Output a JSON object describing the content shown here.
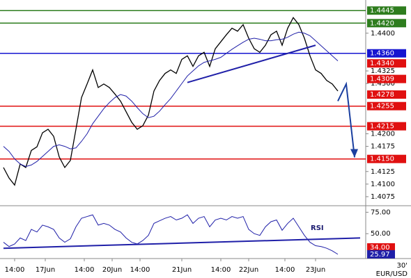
{
  "chart_data": {
    "type": "line",
    "symbol": "EUR/USD",
    "timeframe": "30'",
    "categories": [
      0,
      1,
      2,
      3,
      4,
      5,
      6,
      7,
      8,
      9,
      10,
      11,
      12,
      13,
      14,
      15,
      16,
      17,
      18,
      19,
      20,
      21,
      22,
      23,
      24,
      25,
      26,
      27,
      28,
      29,
      30,
      31,
      32,
      33,
      34,
      35,
      36,
      37,
      38,
      39,
      40,
      41,
      42,
      43,
      44,
      45,
      46,
      47,
      48,
      49,
      50,
      51,
      52,
      53,
      54,
      55,
      56,
      57,
      58,
      59,
      60
    ],
    "series": [
      {
        "color": "#000000",
        "values": [
          1.4133,
          1.4112,
          1.4098,
          1.414,
          1.4133,
          1.4167,
          1.4174,
          1.4202,
          1.4209,
          1.4195,
          1.4154,
          1.4133,
          1.4147,
          1.4209,
          1.4272,
          1.4299,
          1.4327,
          1.4292,
          1.4299,
          1.4292,
          1.4279,
          1.4265,
          1.4244,
          1.4223,
          1.4209,
          1.4216,
          1.4237,
          1.4285,
          1.4306,
          1.432,
          1.4327,
          1.432,
          1.4348,
          1.4355,
          1.4334,
          1.4355,
          1.4362,
          1.4334,
          1.4369,
          1.4383,
          1.4397,
          1.441,
          1.4404,
          1.4417,
          1.439,
          1.4369,
          1.4362,
          1.4376,
          1.4397,
          1.4404,
          1.4376,
          1.441,
          1.4431,
          1.4417,
          1.439,
          1.4355,
          1.4327,
          1.432,
          1.4306,
          1.4299,
          1.4285
        ]
      },
      {
        "color": "#1f1fa8",
        "values": [
          1.4175,
          1.4165,
          1.415,
          1.414,
          1.4135,
          1.4138,
          1.4145,
          1.4155,
          1.4165,
          1.4175,
          1.4178,
          1.4175,
          1.417,
          1.4172,
          1.4185,
          1.42,
          1.422,
          1.4235,
          1.425,
          1.4262,
          1.4272,
          1.4278,
          1.4275,
          1.4265,
          1.4252,
          1.424,
          1.4232,
          1.4235,
          1.4245,
          1.4258,
          1.427,
          1.4285,
          1.43,
          1.4315,
          1.4325,
          1.4335,
          1.4342,
          1.4345,
          1.4348,
          1.4352,
          1.436,
          1.4368,
          1.4375,
          1.4382,
          1.4388,
          1.439,
          1.4388,
          1.4385,
          1.4385,
          1.4387,
          1.4388,
          1.4392,
          1.4398,
          1.4402,
          1.44,
          1.4395,
          1.4385,
          1.4375,
          1.4365,
          1.4355,
          1.4345
        ]
      }
    ],
    "ylim": [
      1.4057,
      1.4466
    ],
    "yticks": [
      {
        "value": 1.44,
        "label": "1.4400"
      },
      {
        "value": 1.4325,
        "label": "1.4325"
      },
      {
        "value": 1.43,
        "label": "1.4300"
      },
      {
        "value": 1.42,
        "label": "1.4200"
      },
      {
        "value": 1.4175,
        "label": "1.4175"
      },
      {
        "value": 1.4125,
        "label": "1.4125"
      },
      {
        "value": 1.41,
        "label": "1.4100"
      },
      {
        "value": 1.4075,
        "label": "1.4075"
      }
    ],
    "xticks": [
      {
        "value": 2,
        "label": "14:00"
      },
      {
        "value": 7.5,
        "label": "17Jun"
      },
      {
        "value": 14.5,
        "label": "14:00"
      },
      {
        "value": 19.5,
        "label": "20Jun"
      },
      {
        "value": 24.5,
        "label": "14:00"
      },
      {
        "value": 32,
        "label": "21Jun"
      },
      {
        "value": 39,
        "label": "14:00"
      },
      {
        "value": 44,
        "label": "22Jun"
      },
      {
        "value": 50.5,
        "label": "14:00"
      },
      {
        "value": 56,
        "label": "23Jun"
      }
    ],
    "levels": [
      {
        "value": 1.4445,
        "label": "1.4445",
        "color": "#2e7d1e",
        "line": true
      },
      {
        "value": 1.442,
        "label": "1.4420",
        "color": "#2e7d1e",
        "line": true
      },
      {
        "value": 1.436,
        "label": "1.4360",
        "color": "#1515d0",
        "line": true
      },
      {
        "value": 1.434,
        "label": "1.4340",
        "color": "#e01010",
        "line": false
      },
      {
        "value": 1.4309,
        "label": "1.4309",
        "color": "#e01010",
        "line": false
      },
      {
        "value": 1.4278,
        "label": "1.4278",
        "color": "#e01010",
        "line": false
      },
      {
        "value": 1.4255,
        "label": "1.4255",
        "color": "#e01010",
        "line": true
      },
      {
        "value": 1.4215,
        "label": "1.4215",
        "color": "#e01010",
        "line": true
      },
      {
        "value": 1.415,
        "label": "1.4150",
        "color": "#e01010",
        "line": true
      }
    ],
    "trendline": {
      "x": [
        33,
        56
      ],
      "y": [
        1.4302,
        1.4376
      ],
      "color": "#1f1fa8"
    },
    "forecast_arrow": {
      "x": [
        60,
        61.5,
        63
      ],
      "y": [
        1.4265,
        1.4299,
        1.4153
      ],
      "color": "#1a3fa0"
    },
    "rsi": {
      "title": "RSI",
      "color": "#1f1fa8",
      "values": [
        40,
        35,
        38,
        45,
        42,
        55,
        52,
        60,
        58,
        55,
        45,
        40,
        44,
        58,
        68,
        70,
        72,
        60,
        62,
        60,
        55,
        52,
        45,
        40,
        38,
        42,
        48,
        62,
        65,
        68,
        70,
        66,
        68,
        72,
        62,
        68,
        70,
        58,
        66,
        68,
        66,
        70,
        68,
        70,
        55,
        50,
        48,
        58,
        64,
        66,
        54,
        62,
        68,
        58,
        48,
        40,
        36,
        35,
        33,
        30,
        25.97
      ],
      "ylim": [
        21,
        81
      ],
      "yticks": [
        {
          "value": 75,
          "label": "75.00"
        },
        {
          "value": 50,
          "label": "50.00"
        }
      ],
      "levels": [
        {
          "value": 34,
          "label": "34.00",
          "color": "#e01010"
        },
        {
          "value": 25.97,
          "label": "25.97",
          "color": "#1f1fa8"
        }
      ],
      "trendline": {
        "x": [
          0,
          64
        ],
        "y": [
          33,
          45
        ],
        "color": "#1f1fa8"
      }
    }
  }
}
